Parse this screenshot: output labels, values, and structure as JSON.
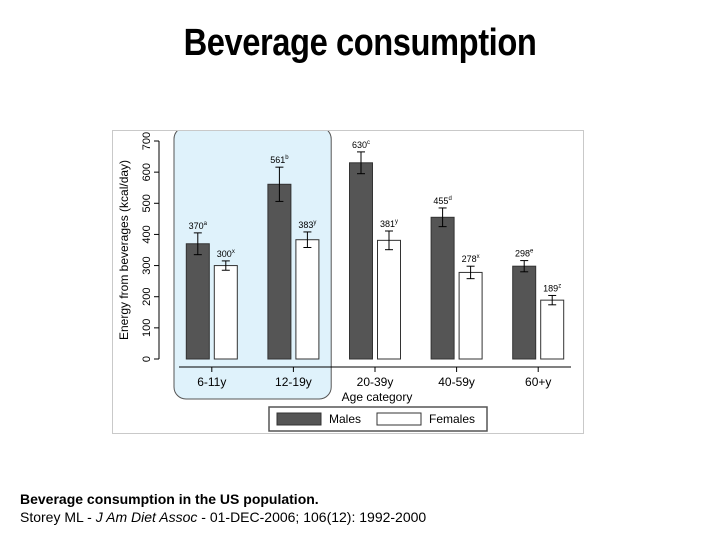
{
  "slide": {
    "title": "Beverage consumption",
    "caption_line1": "Beverage consumption in the US population.",
    "citation_authors": "Storey ML - ",
    "citation_journal": "J Am Diet Assoc",
    "citation_rest": " - 01-DEC-2006; 106(12): 1992-2000"
  },
  "colors": {
    "males": "#555555",
    "females": "#ffffff",
    "highlight": "#dff2fb"
  },
  "chart_data": {
    "type": "bar",
    "title": "",
    "xlabel": "Age category",
    "ylabel": "Energy from beverages (kcal/day)",
    "ylim": [
      0,
      700
    ],
    "yticks": [
      0,
      100,
      200,
      300,
      400,
      500,
      600,
      700
    ],
    "categories": [
      "6-11y",
      "12-19y",
      "20-39y",
      "40-59y",
      "60+y"
    ],
    "highlighted_categories": [
      "6-11y",
      "12-19y"
    ],
    "legend_position": "bottom",
    "series": [
      {
        "name": "Males",
        "values": [
          370,
          561,
          630,
          455,
          298
        ],
        "labels": [
          "370",
          "561",
          "630",
          "455",
          "298"
        ],
        "superscripts": [
          "a",
          "b",
          "c",
          "d",
          "e"
        ],
        "errors": [
          35,
          55,
          35,
          30,
          18
        ]
      },
      {
        "name": "Females",
        "values": [
          300,
          383,
          381,
          278,
          189
        ],
        "labels": [
          "300",
          "383",
          "381",
          "278",
          "189"
        ],
        "superscripts": [
          "x",
          "y",
          "y",
          "x",
          "z"
        ],
        "errors": [
          15,
          25,
          30,
          20,
          15
        ]
      }
    ]
  }
}
